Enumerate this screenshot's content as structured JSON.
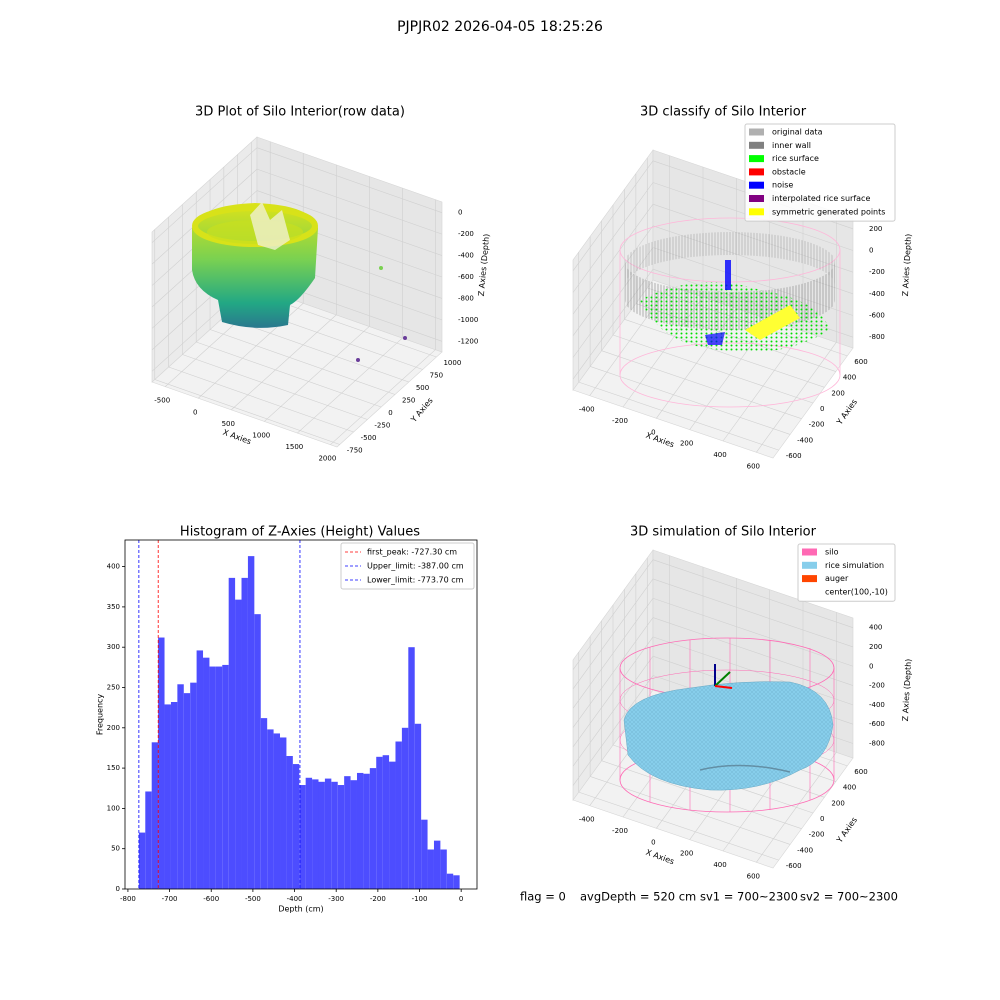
{
  "title": "PJPJR02 2026-04-05 18:25:26",
  "footer": [
    "flag = 0",
    "avgDepth = 520 cm",
    "sv1 = 700~2300",
    "sv2 = 700~2300"
  ],
  "chart_data": [
    {
      "type": "scatter3d",
      "title": "3D Plot of Silo Interior(row data)",
      "xlabel": "X Axies",
      "ylabel": "Y Axies",
      "zlabel": "Z Axies (Depth)",
      "xlim": [
        -700,
        2100
      ],
      "ylim": [
        -800,
        1100
      ],
      "zlim": [
        -1300,
        100
      ],
      "xticks": [
        -500,
        0,
        500,
        1000,
        1500,
        2000
      ],
      "yticks": [
        -750,
        -500,
        -250,
        0,
        250,
        500,
        750,
        1000
      ],
      "zticks": [
        -1200,
        -1000,
        -800,
        -600,
        -400,
        -200,
        0
      ]
    },
    {
      "type": "scatter3d",
      "title": "3D classify of Silo Interior",
      "xlabel": "X Axies",
      "ylabel": "Y Axies",
      "zlabel": "Z Axies (Depth)",
      "xlim": [
        -500,
        700
      ],
      "ylim": [
        -700,
        700
      ],
      "zlim": [
        -900,
        300
      ],
      "xticks": [
        -400,
        -200,
        0,
        200,
        400,
        600
      ],
      "yticks": [
        -600,
        -400,
        -200,
        0,
        200,
        400,
        600
      ],
      "zticks": [
        -800,
        -600,
        -400,
        -200,
        0,
        200
      ],
      "legend": [
        {
          "name": "original data",
          "color": "#b0b0b0"
        },
        {
          "name": "inner wall",
          "color": "#808080"
        },
        {
          "name": "rice surface",
          "color": "#00ff00"
        },
        {
          "name": "obstacle",
          "color": "#ff0000"
        },
        {
          "name": "noise",
          "color": "#0000ff"
        },
        {
          "name": "interpolated rice surface",
          "color": "#800080"
        },
        {
          "name": "symmetric generated points",
          "color": "#ffff00"
        }
      ]
    },
    {
      "type": "histogram",
      "title": "Histogram of Z-Axies (Height) Values",
      "xlabel": "Depth (cm)",
      "ylabel": "Frequency",
      "color": "#4d4dff",
      "bins": [
        -773.7,
        -758.3,
        -742.9,
        -727.5,
        -712.1,
        -696.7,
        -681.3,
        -665.9,
        -650.5,
        -635.1,
        -619.7,
        -604.3,
        -588.9,
        -573.5,
        -558.1,
        -542.7,
        -527.3,
        -511.9,
        -496.5,
        -481.1,
        -465.7,
        -450.3,
        -434.9,
        -419.5,
        -404.1,
        -388.7,
        -373.3,
        -357.9,
        -342.5,
        -327.1,
        -311.7,
        -296.3,
        -280.9,
        -265.5,
        -250.1,
        -234.7,
        -219.3,
        -203.9,
        -188.5,
        -173.1,
        -157.7,
        -142.3,
        -126.9,
        -111.5,
        -96.1,
        -80.7,
        -65.3,
        -49.9,
        -34.5,
        -19.1,
        -3.7
      ],
      "values": [
        70,
        121,
        182,
        312,
        229,
        232,
        254,
        243,
        256,
        296,
        287,
        276,
        276,
        278,
        386,
        359,
        386,
        413,
        341,
        212,
        198,
        193,
        188,
        165,
        155,
        129,
        138,
        136,
        133,
        137,
        133,
        129,
        140,
        135,
        144,
        143,
        150,
        164,
        166,
        158,
        183,
        200,
        300,
        205,
        86,
        49,
        60,
        49,
        19,
        17
      ],
      "xlim": [
        -807,
        38
      ],
      "ylim": [
        0,
        433
      ],
      "xticks": [
        -800,
        -700,
        -600,
        -500,
        -400,
        -300,
        -200,
        -100,
        0
      ],
      "yticks": [
        0,
        50,
        100,
        150,
        200,
        250,
        300,
        350,
        400
      ],
      "vlines": [
        {
          "name": "first_peak: -727.30 cm",
          "value": -727.3,
          "color": "#ff0000"
        },
        {
          "name": "Upper_limit: -387.00 cm",
          "value": -387.0,
          "color": "#0000ff"
        },
        {
          "name": "Lower_limit: -773.70 cm",
          "value": -773.7,
          "color": "#0000ff"
        }
      ],
      "legend_loc": "upper right"
    },
    {
      "type": "surface3d",
      "title": "3D simulation of Silo Interior",
      "xlabel": "X Axies",
      "ylabel": "Y Axies",
      "zlabel": "Z Axies (Depth)",
      "xlim": [
        -500,
        700
      ],
      "ylim": [
        -700,
        700
      ],
      "zlim": [
        -950,
        500
      ],
      "xticks": [
        -400,
        -200,
        0,
        200,
        400,
        600
      ],
      "yticks": [
        -600,
        -400,
        -200,
        0,
        200,
        400,
        600
      ],
      "zticks": [
        -800,
        -600,
        -400,
        -200,
        0,
        200,
        400
      ],
      "legend": [
        {
          "name": "silo",
          "color": "#ff69b4"
        },
        {
          "name": "rice simulation",
          "color": "#87ceeb"
        },
        {
          "name": "auger",
          "color": "#ff4500"
        },
        {
          "name": "center(100,-10)"
        }
      ]
    }
  ]
}
